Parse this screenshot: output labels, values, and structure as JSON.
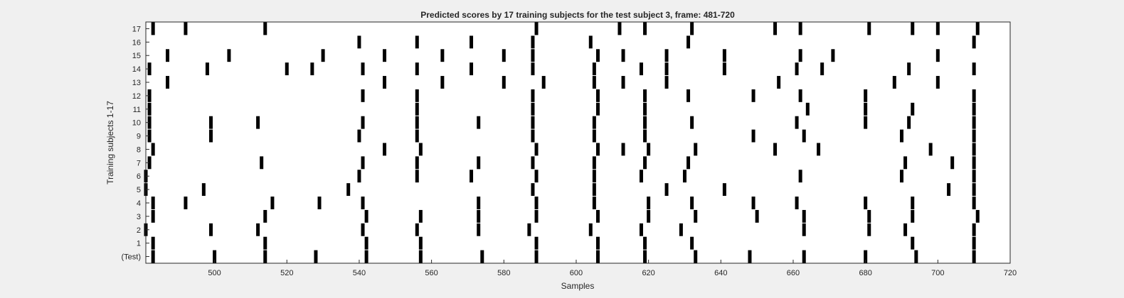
{
  "chart_data": {
    "type": "raster",
    "title": "Predicted scores by 17 training subjects for the test subject 3, frame: 481-720",
    "xlabel": "Samples",
    "ylabel": "Training subjects 1-17",
    "xlim": [
      481,
      720
    ],
    "xticks": [
      500,
      520,
      540,
      560,
      580,
      600,
      620,
      640,
      660,
      680,
      700,
      720
    ],
    "yticks": [
      "(Test)",
      "1",
      "2",
      "3",
      "4",
      "5",
      "6",
      "7",
      "8",
      "9",
      "10",
      "11",
      "12",
      "13",
      "14",
      "15",
      "16",
      "17"
    ],
    "grid": false,
    "rows": [
      {
        "label": "(Test)",
        "x": [
          483,
          500,
          514,
          528,
          542,
          557,
          574,
          589,
          606,
          619,
          633,
          648,
          663,
          680,
          694,
          710
        ]
      },
      {
        "label": "1",
        "x": [
          483,
          514,
          542,
          557,
          589,
          606,
          619,
          632,
          693,
          710
        ]
      },
      {
        "label": "2",
        "x": [
          481,
          499,
          512,
          541,
          556,
          573,
          587,
          604,
          618,
          629,
          663,
          681,
          691,
          710
        ]
      },
      {
        "label": "3",
        "x": [
          483,
          514,
          542,
          557,
          573,
          589,
          606,
          620,
          633,
          650,
          663,
          681,
          693,
          711
        ]
      },
      {
        "label": "4",
        "x": [
          483,
          492,
          516,
          529,
          541,
          573,
          589,
          605,
          620,
          632,
          649,
          661,
          680,
          693,
          710
        ]
      },
      {
        "label": "5",
        "x": [
          481,
          497,
          537,
          588,
          605,
          625,
          641,
          703,
          710
        ]
      },
      {
        "label": "6",
        "x": [
          481,
          540,
          556,
          571,
          589,
          605,
          618,
          630,
          662,
          690,
          710
        ]
      },
      {
        "label": "7",
        "x": [
          482,
          513,
          541,
          556,
          573,
          588,
          605,
          619,
          631,
          691,
          704,
          710
        ]
      },
      {
        "label": "8",
        "x": [
          483,
          547,
          557,
          589,
          606,
          613,
          620,
          633,
          655,
          667,
          698,
          710
        ]
      },
      {
        "label": "9",
        "x": [
          482,
          499,
          540,
          556,
          588,
          605,
          619,
          649,
          663,
          690,
          710
        ]
      },
      {
        "label": "10",
        "x": [
          482,
          499,
          512,
          541,
          556,
          573,
          588,
          605,
          619,
          632,
          661,
          680,
          692,
          710
        ]
      },
      {
        "label": "11",
        "x": [
          482,
          556,
          588,
          606,
          619,
          664,
          680,
          693,
          710
        ]
      },
      {
        "label": "12",
        "x": [
          482,
          541,
          556,
          588,
          606,
          619,
          631,
          649,
          662,
          680,
          710
        ]
      },
      {
        "label": "13",
        "x": [
          487,
          547,
          563,
          580,
          591,
          605,
          613,
          625,
          656,
          688,
          700
        ]
      },
      {
        "label": "14",
        "x": [
          482,
          498,
          520,
          527,
          541,
          556,
          571,
          588,
          605,
          618,
          625,
          641,
          661,
          668,
          692,
          710
        ]
      },
      {
        "label": "15",
        "x": [
          487,
          504,
          530,
          547,
          563,
          580,
          588,
          606,
          613,
          625,
          641,
          662,
          671,
          700
        ]
      },
      {
        "label": "16",
        "x": [
          540,
          556,
          571,
          588,
          604,
          631,
          710
        ]
      },
      {
        "label": "17",
        "x": [
          483,
          492,
          514,
          589,
          612,
          619,
          632,
          655,
          662,
          681,
          693,
          700,
          711
        ]
      }
    ]
  }
}
